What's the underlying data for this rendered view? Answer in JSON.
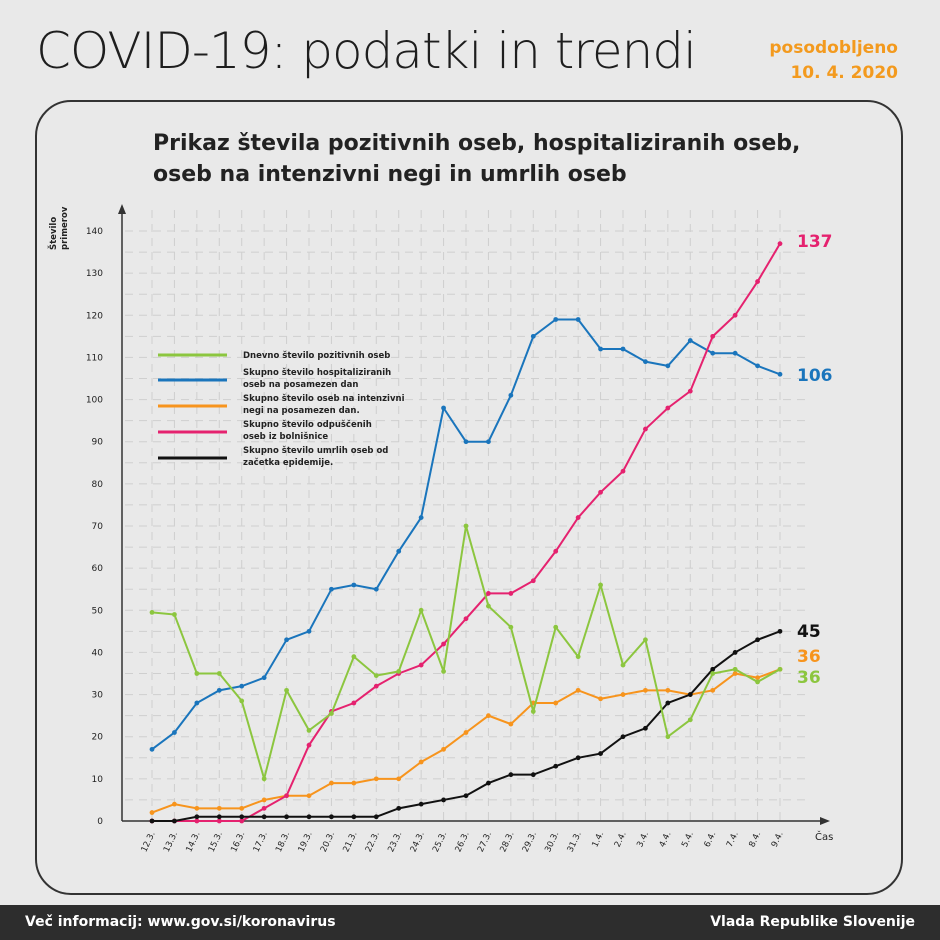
{
  "header": {
    "title": "COVID-19: podatki in trendi",
    "updated_label": "posodobljeno",
    "updated_date": "10. 4. 2020"
  },
  "footer": {
    "info": "Več informacij: www.gov.si/koronavirus",
    "org": "Vlada Republike Slovenije"
  },
  "chart_data": {
    "type": "line",
    "title": "Prikaz števila pozitivnih oseb, hospitaliziranih oseb, oseb na intenzivni negi in umrlih oseb",
    "xlabel": "Čas",
    "ylabel": "Število primerov",
    "ylim": [
      0,
      140
    ],
    "yticks": [
      0,
      10,
      20,
      30,
      40,
      50,
      60,
      70,
      80,
      90,
      100,
      110,
      120,
      130,
      140
    ],
    "grid": true,
    "legend": "left",
    "categories": [
      "12.3.",
      "13.3.",
      "14.3.",
      "15.3.",
      "16.3.",
      "17.3.",
      "18.3.",
      "19.3.",
      "20.3.",
      "21.3.",
      "22.3.",
      "23.3.",
      "24.3.",
      "25.3.",
      "26.3.",
      "27.3.",
      "28.3.",
      "29.3.",
      "30.3.",
      "31.3.",
      "1.4.",
      "2.4.",
      "3.4.",
      "4.4.",
      "5.4.",
      "6.4.",
      "7.4.",
      "8.4.",
      "9.4."
    ],
    "series": [
      {
        "name": "Dnevno število pozitivnih oseb",
        "color": "#8cc63f",
        "end_label": "36",
        "values": [
          49.5,
          49,
          35,
          35,
          28.5,
          10,
          31,
          21.5,
          25.5,
          39,
          34.5,
          35.5,
          50,
          35.5,
          70,
          51,
          46,
          26,
          46,
          39,
          56,
          37,
          43,
          20,
          24,
          35,
          36,
          33,
          36
        ]
      },
      {
        "name": "Skupno število hospitaliziranih oseb na posamezen dan",
        "color": "#1a75bc",
        "end_label": "106",
        "values": [
          17,
          21,
          28,
          31,
          32,
          34,
          43,
          45,
          55,
          56,
          55,
          64,
          72,
          98,
          90,
          90,
          101,
          115,
          119,
          119,
          112,
          112,
          109,
          108,
          114,
          111,
          111,
          108,
          106
        ]
      },
      {
        "name": "Skupno število oseb na intenzivni negi na posamezen dan.",
        "color": "#f7941d",
        "end_label": "36",
        "values": [
          2,
          4,
          3,
          3,
          3,
          5,
          6,
          6,
          9,
          9,
          10,
          10,
          14,
          17,
          21,
          25,
          23,
          28,
          28,
          31,
          29,
          30,
          31,
          31,
          30,
          31,
          35,
          34,
          36
        ]
      },
      {
        "name": "Skupno število odpuščenih oseb iz bolnišnice",
        "color": "#e5226f",
        "end_label": "137",
        "values": [
          0,
          0,
          0,
          0,
          0,
          3,
          6,
          18,
          26,
          28,
          32,
          35,
          37,
          42,
          48,
          54,
          54,
          57,
          64,
          72,
          78,
          83,
          93,
          98,
          102,
          115,
          120,
          128,
          137
        ]
      },
      {
        "name": "Skupno število umrlih oseb od začetka epidemije.",
        "color": "#111111",
        "end_label": "45",
        "values": [
          0,
          0,
          1,
          1,
          1,
          1,
          1,
          1,
          1,
          1,
          1,
          3,
          4,
          5,
          6,
          9,
          11,
          11,
          13,
          15,
          16,
          20,
          22,
          28,
          30,
          36,
          40,
          43,
          45
        ]
      }
    ]
  }
}
